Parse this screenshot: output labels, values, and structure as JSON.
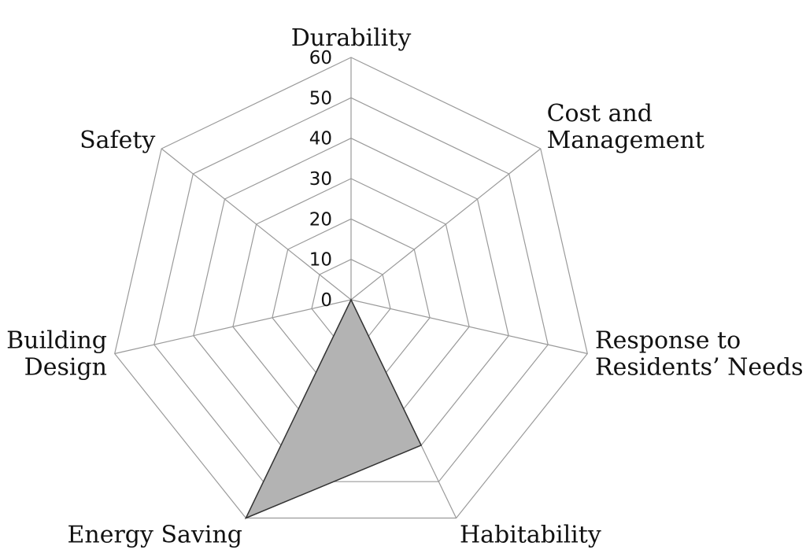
{
  "chart_data": {
    "type": "radar",
    "title": "",
    "categories": [
      [
        "Durability"
      ],
      [
        "Cost and",
        "Management"
      ],
      [
        "Response to",
        "Residents’ Needs"
      ],
      [
        "Habitability"
      ],
      [
        "Energy Saving"
      ],
      [
        "Building",
        "Design"
      ],
      [
        "Safety"
      ]
    ],
    "series": [
      {
        "values": [
          0,
          0,
          0,
          40,
          60,
          0,
          0
        ]
      }
    ],
    "range": [
      0,
      60
    ],
    "ticks": [
      0,
      10,
      20,
      30,
      40,
      50,
      60
    ],
    "grid": true,
    "legend": "none",
    "colors": {
      "fill": "#b3b3b3",
      "stroke": "#333333",
      "grid": "#9a9a9a"
    }
  }
}
